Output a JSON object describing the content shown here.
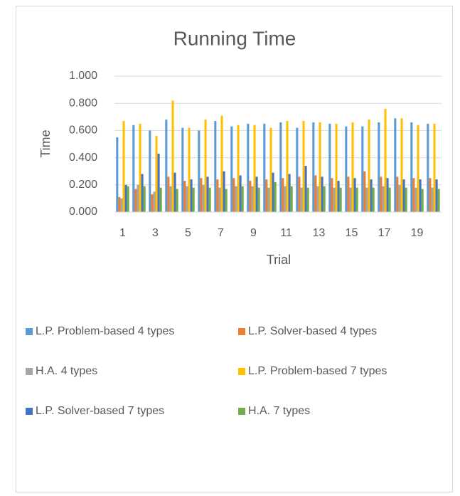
{
  "chart_data": {
    "type": "bar",
    "title": "Running Time",
    "x_label": "Trial",
    "y_label": "Time",
    "categories": [
      1,
      null,
      3,
      null,
      5,
      null,
      7,
      null,
      9,
      null,
      11,
      null,
      13,
      null,
      15,
      null,
      17,
      null,
      19,
      null
    ],
    "series": [
      {
        "name": "L.P. Problem-based 4 types",
        "color": "#5b9bd5",
        "values": [
          0.55,
          0.64,
          0.6,
          0.68,
          0.62,
          0.6,
          0.67,
          0.63,
          0.65,
          0.65,
          0.66,
          0.62,
          0.66,
          0.65,
          0.63,
          0.63,
          0.66,
          0.69,
          0.66,
          0.65
        ]
      },
      {
        "name": "L.P. Solver-based 4 types",
        "color": "#ed7d31",
        "values": [
          0.11,
          0.17,
          0.13,
          0.26,
          0.23,
          0.25,
          0.24,
          0.25,
          0.23,
          0.24,
          0.25,
          0.26,
          0.27,
          0.25,
          0.26,
          0.3,
          0.26,
          0.26,
          0.25,
          0.25
        ]
      },
      {
        "name": "H.A. 4 types",
        "color": "#a5a5a5",
        "values": [
          0.1,
          0.2,
          0.15,
          0.19,
          0.19,
          0.2,
          0.18,
          0.19,
          0.19,
          0.18,
          0.19,
          0.18,
          0.19,
          0.18,
          0.18,
          0.18,
          0.19,
          0.2,
          0.18,
          0.18
        ]
      },
      {
        "name": "L.P. Problem-based 7 types",
        "color": "#ffc000",
        "values": [
          0.67,
          0.65,
          0.56,
          0.82,
          0.62,
          0.68,
          0.71,
          0.64,
          0.64,
          0.62,
          0.67,
          0.67,
          0.66,
          0.65,
          0.66,
          0.68,
          0.76,
          0.69,
          0.64,
          0.65
        ]
      },
      {
        "name": "L.P. Solver-based 7 types",
        "color": "#4472c4",
        "values": [
          0.2,
          0.28,
          0.43,
          0.29,
          0.24,
          0.26,
          0.3,
          0.27,
          0.26,
          0.29,
          0.28,
          0.34,
          0.26,
          0.23,
          0.25,
          0.24,
          0.25,
          0.24,
          0.24,
          0.24
        ]
      },
      {
        "name": "H.A. 7 types",
        "color": "#70ad47",
        "values": [
          0.19,
          0.19,
          0.18,
          0.17,
          0.18,
          0.18,
          0.17,
          0.19,
          0.18,
          0.22,
          0.19,
          0.18,
          0.19,
          0.18,
          0.18,
          0.18,
          0.18,
          0.18,
          0.17,
          0.17
        ]
      }
    ],
    "ylim": [
      0,
      1
    ],
    "yticks": [
      {
        "value": 0,
        "label": "0.000"
      },
      {
        "value": 0.2,
        "label": "0.200"
      },
      {
        "value": 0.4,
        "label": "0.400"
      },
      {
        "value": 0.6,
        "label": "0.600"
      },
      {
        "value": 0.8,
        "label": "0.800"
      },
      {
        "value": 1,
        "label": "1.000"
      }
    ],
    "grid": true,
    "legend": "bottom"
  }
}
